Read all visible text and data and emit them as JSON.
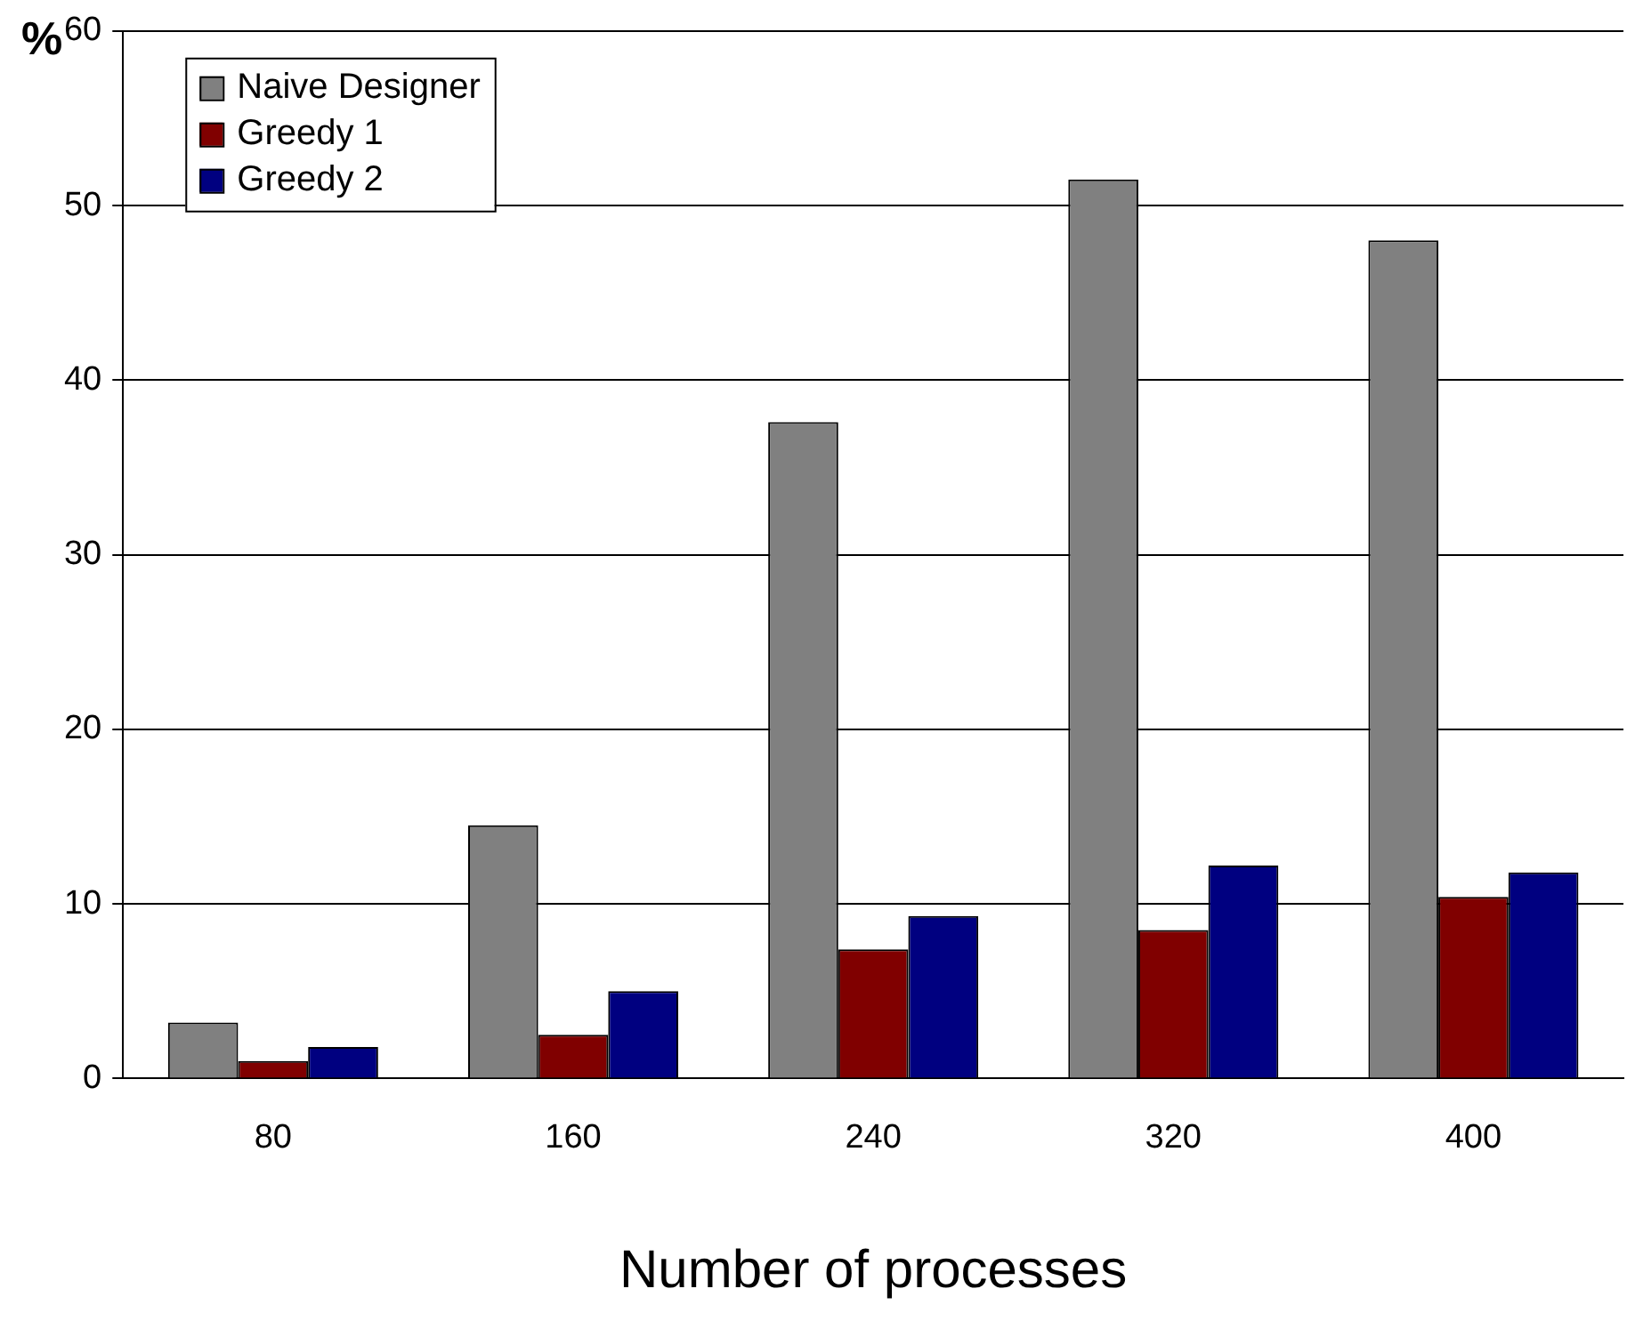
{
  "chart_data": {
    "type": "bar",
    "xlabel": "Number of processes",
    "ylabel": "%",
    "categories": [
      "80",
      "160",
      "240",
      "320",
      "400"
    ],
    "series": [
      {
        "name": "Naive Designer",
        "color": "#808080",
        "values": [
          3.2,
          14.5,
          37.6,
          51.5,
          48.0
        ]
      },
      {
        "name": "Greedy 1",
        "color": "#800000",
        "values": [
          1.0,
          2.5,
          7.4,
          8.5,
          10.4
        ]
      },
      {
        "name": "Greedy 2",
        "color": "#000080",
        "values": [
          1.8,
          5.0,
          9.3,
          12.2,
          11.8
        ]
      }
    ],
    "ylim": [
      0,
      60
    ],
    "yticks": [
      0,
      10,
      20,
      30,
      40,
      50,
      60
    ],
    "grid": "y",
    "legend": "top left"
  }
}
